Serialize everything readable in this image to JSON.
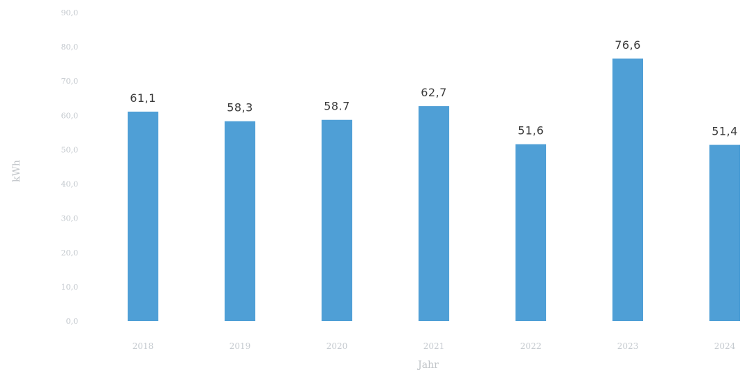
{
  "chart_data": {
    "type": "bar",
    "categories": [
      "2018",
      "2019",
      "2020",
      "2021",
      "2022",
      "2023",
      "2024"
    ],
    "values": [
      61.1,
      58.3,
      58.7,
      62.7,
      51.6,
      76.6,
      51.4
    ],
    "value_labels": [
      "61,1",
      "58,3",
      "58.7",
      "62,7",
      "51,6",
      "76,6",
      "51,4"
    ],
    "y_ticks": [
      0,
      10,
      20,
      30,
      40,
      50,
      60,
      70,
      80,
      90
    ],
    "y_tick_labels": [
      "0,0",
      "10,0",
      "20,0",
      "30,0",
      "40,0",
      "50,0",
      "60,0",
      "70,0",
      "80,0",
      "90,0"
    ],
    "xlabel": "Jahr",
    "ylabel": "kWh",
    "ylim": [
      0,
      90
    ],
    "grid": false,
    "colors": {
      "bar": "#4f9fd6"
    }
  }
}
